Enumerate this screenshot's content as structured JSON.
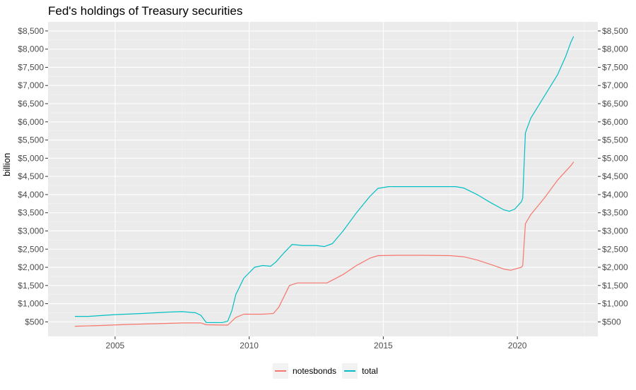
{
  "chart_data": {
    "type": "line",
    "title": "Fed's holdings of Treasury securities",
    "ylabel": "billion",
    "xlabel": "",
    "xlim": [
      2002.5,
      2023.0
    ],
    "ylim": [
      100,
      8750
    ],
    "x_ticks": [
      2005,
      2010,
      2015,
      2020
    ],
    "y_ticks": [
      500,
      1000,
      1500,
      2000,
      2500,
      3000,
      3500,
      4000,
      4500,
      5000,
      5500,
      6000,
      6500,
      7000,
      7500,
      8000,
      8500
    ],
    "y_tick_labels": [
      "$500",
      "$1,000",
      "$1,500",
      "$2,000",
      "$2,500",
      "$3,000",
      "$3,500",
      "$4,000",
      "$4,500",
      "$5,000",
      "$5,500",
      "$6,000",
      "$6,500",
      "$7,000",
      "$7,500",
      "$8,000",
      "$8,500"
    ],
    "secondary_y_axis": true,
    "grid": true,
    "legend_position": "bottom",
    "series": [
      {
        "name": "notesbonds",
        "color": "#F8766D",
        "points": [
          [
            2003.5,
            380
          ],
          [
            2004.5,
            400
          ],
          [
            2005.5,
            430
          ],
          [
            2006.5,
            450
          ],
          [
            2007.5,
            470
          ],
          [
            2008.2,
            470
          ],
          [
            2008.4,
            420
          ],
          [
            2009.2,
            410
          ],
          [
            2009.5,
            620
          ],
          [
            2009.8,
            710
          ],
          [
            2010.5,
            710
          ],
          [
            2010.9,
            730
          ],
          [
            2011.1,
            900
          ],
          [
            2011.3,
            1200
          ],
          [
            2011.5,
            1500
          ],
          [
            2011.8,
            1570
          ],
          [
            2012.0,
            1570
          ],
          [
            2012.9,
            1570
          ],
          [
            2013.5,
            1800
          ],
          [
            2014.0,
            2050
          ],
          [
            2014.5,
            2250
          ],
          [
            2014.8,
            2320
          ],
          [
            2015.5,
            2330
          ],
          [
            2016.5,
            2330
          ],
          [
            2017.5,
            2320
          ],
          [
            2018.0,
            2290
          ],
          [
            2018.5,
            2200
          ],
          [
            2019.0,
            2080
          ],
          [
            2019.5,
            1950
          ],
          [
            2019.75,
            1920
          ],
          [
            2020.15,
            2000
          ],
          [
            2020.2,
            2050
          ],
          [
            2020.3,
            3200
          ],
          [
            2020.5,
            3450
          ],
          [
            2021.0,
            3900
          ],
          [
            2021.5,
            4400
          ],
          [
            2022.0,
            4800
          ],
          [
            2022.1,
            4900
          ]
        ]
      },
      {
        "name": "total",
        "color": "#00BFC4",
        "points": [
          [
            2003.5,
            650
          ],
          [
            2004.0,
            650
          ],
          [
            2005.0,
            700
          ],
          [
            2006.0,
            730
          ],
          [
            2007.0,
            770
          ],
          [
            2007.5,
            780
          ],
          [
            2008.0,
            750
          ],
          [
            2008.2,
            680
          ],
          [
            2008.4,
            480
          ],
          [
            2009.0,
            480
          ],
          [
            2009.2,
            520
          ],
          [
            2009.35,
            800
          ],
          [
            2009.5,
            1250
          ],
          [
            2009.8,
            1700
          ],
          [
            2010.2,
            2000
          ],
          [
            2010.5,
            2050
          ],
          [
            2010.8,
            2030
          ],
          [
            2011.0,
            2150
          ],
          [
            2011.3,
            2400
          ],
          [
            2011.6,
            2630
          ],
          [
            2012.0,
            2600
          ],
          [
            2012.5,
            2600
          ],
          [
            2012.8,
            2570
          ],
          [
            2013.1,
            2650
          ],
          [
            2013.5,
            3000
          ],
          [
            2014.0,
            3500
          ],
          [
            2014.5,
            3950
          ],
          [
            2014.8,
            4170
          ],
          [
            2015.2,
            4220
          ],
          [
            2016.0,
            4220
          ],
          [
            2017.0,
            4220
          ],
          [
            2017.7,
            4220
          ],
          [
            2018.0,
            4180
          ],
          [
            2018.5,
            4000
          ],
          [
            2019.0,
            3780
          ],
          [
            2019.5,
            3580
          ],
          [
            2019.7,
            3540
          ],
          [
            2019.9,
            3600
          ],
          [
            2020.15,
            3800
          ],
          [
            2020.2,
            3900
          ],
          [
            2020.3,
            5700
          ],
          [
            2020.5,
            6100
          ],
          [
            2021.0,
            6700
          ],
          [
            2021.5,
            7300
          ],
          [
            2021.8,
            7800
          ],
          [
            2022.0,
            8200
          ],
          [
            2022.1,
            8350
          ]
        ]
      }
    ]
  }
}
